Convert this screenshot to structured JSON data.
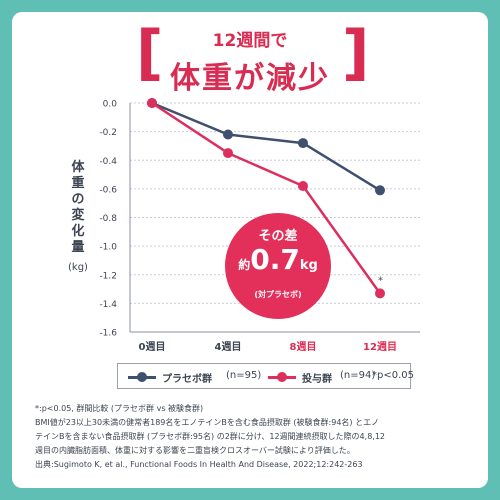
{
  "header": {
    "subtitle": "12週間で",
    "title": "体重が減少",
    "bracket_left": "[",
    "bracket_right": "]"
  },
  "axis": {
    "ylabel": "体重の変化量",
    "yunit": "(kg)"
  },
  "callout": {
    "line1": "その差",
    "prefix": "約",
    "value": "0.7",
    "unit": "kg",
    "note": "(対プラセボ)"
  },
  "legend": {
    "placebo": "プラセボ群",
    "placebo_n": "(n=95)",
    "treatment": "投与群",
    "treatment_n": "(n=94)",
    "sig": "*p<0.05"
  },
  "notes": {
    "line1": "*:p<0.05, 群間比較 (プラセボ群 vs 被験食群)",
    "line2": "BMI値が23以上30未満の健常者189名をエノテインBを含む食品摂取群 (被験食群:94名) とエノ",
    "line3": "テインBを含まない食品摂取群 (プラセボ群:95名) の2群に分け、12週間連続摂取した際の4,8,12",
    "line4": "週目の内臓脂肪面積、体重に対する影響を二重盲検クロスオーバー試験により評価した。",
    "line5": "出典:Sugimoto K, et al., Functional Foods In Health And Disease, 2022;12:242-263"
  },
  "colors": {
    "accent": "#d92c52",
    "placebo": "#3f4f6e",
    "treatment": "#dc2f5e",
    "background": "#5fbfb5"
  },
  "chart_data": {
    "type": "line",
    "categories": [
      "0週目",
      "4週目",
      "8週目",
      "12週目"
    ],
    "category_colors": [
      "#3d4552",
      "#3d4552",
      "#d92c52",
      "#d92c52"
    ],
    "series": [
      {
        "name": "プラセボ群",
        "n": "(n=95)",
        "values": [
          0.0,
          -0.22,
          -0.28,
          -0.61
        ],
        "color": "#3f4f6e"
      },
      {
        "name": "投与群",
        "n": "(n=94)",
        "values": [
          0.0,
          -0.35,
          -0.58,
          -1.33
        ],
        "color": "#dc2f5e"
      }
    ],
    "annotations": [
      {
        "category": "12週目",
        "text": "*"
      }
    ],
    "yticks": [
      "0.0",
      "-0.2",
      "-0.4",
      "-0.6",
      "-0.8",
      "-1.0",
      "-1.2",
      "-1.4",
      "-1.6"
    ],
    "ylim": [
      -1.6,
      0.0
    ],
    "ylabel": "体重の変化量",
    "grid": true
  }
}
